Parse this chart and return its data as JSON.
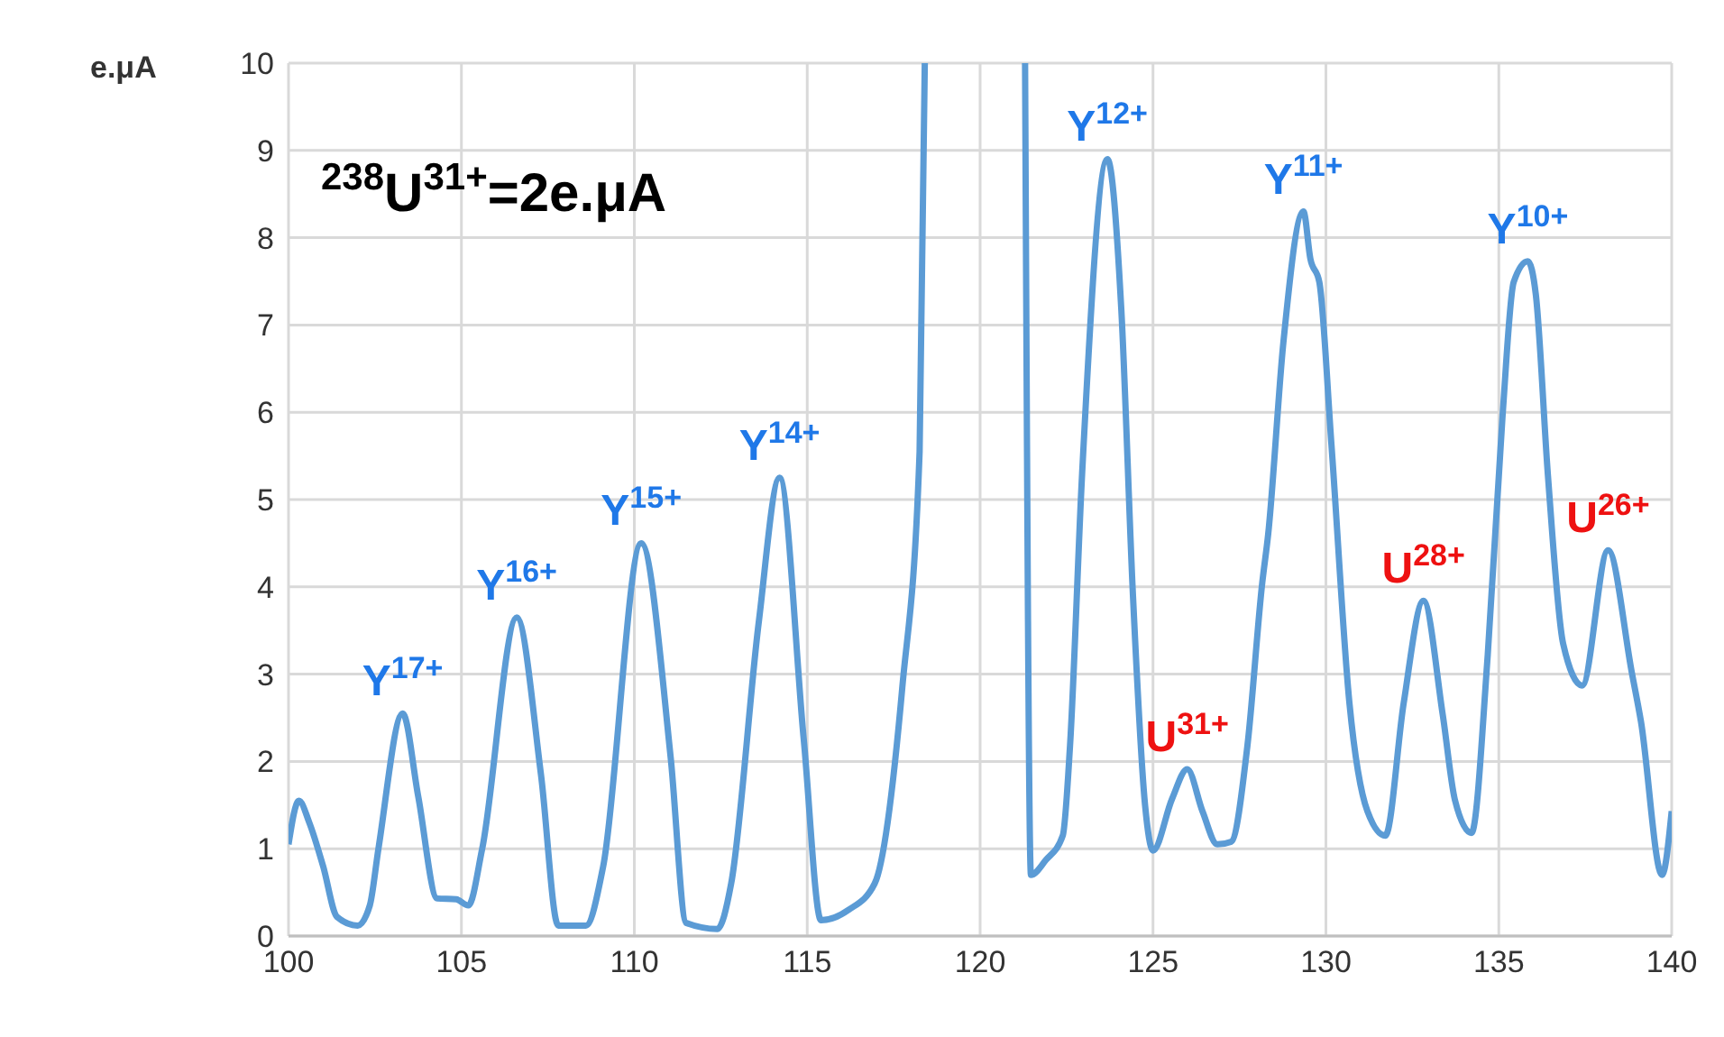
{
  "chart_data": {
    "type": "line",
    "ylabel": "e.μA",
    "x": [
      100,
      100.3,
      100.6,
      101.0,
      101.4,
      102.0,
      102.35,
      102.6,
      103.3,
      103.75,
      104.3,
      104.85,
      105.2,
      105.6,
      106.6,
      107.3,
      107.8,
      108.6,
      109.1,
      110.2,
      111.05,
      111.5,
      112.4,
      112.8,
      113.6,
      114.2,
      114.9,
      115.4,
      116.2,
      116.95,
      117.75,
      118.25,
      118.4,
      119.8,
      121.3,
      121.47,
      121.9,
      122.39,
      122.6,
      122.95,
      123.68,
      124.08,
      124.42,
      124.77,
      125.0,
      125.55,
      125.99,
      126.43,
      126.86,
      127.26,
      127.73,
      128.16,
      128.33,
      128.77,
      129.35,
      129.55,
      129.81,
      130.16,
      130.68,
      131.2,
      131.72,
      132.25,
      132.82,
      133.38,
      133.73,
      134.21,
      134.68,
      135.11,
      135.43,
      135.84,
      136.07,
      136.42,
      136.86,
      137.41,
      138.16,
      138.85,
      139.11,
      139.72,
      140
    ],
    "series": [
      {
        "color": "#5b9bd5",
        "values": [
          1.05,
          1.55,
          1.3,
          0.8,
          0.22,
          0.12,
          0.35,
          1.0,
          2.55,
          1.6,
          0.43,
          0.42,
          0.35,
          1.0,
          3.65,
          1.85,
          0.12,
          0.12,
          0.8,
          4.5,
          2.05,
          0.15,
          0.08,
          0.6,
          3.6,
          5.25,
          2.25,
          0.18,
          0.3,
          0.6,
          2.85,
          5.55,
          10,
          null,
          10,
          0.7,
          0.87,
          1.15,
          2.18,
          5.3,
          8.9,
          7.2,
          3.9,
          1.5,
          0.98,
          1.57,
          1.91,
          1.43,
          1.05,
          1.08,
          2.18,
          4.05,
          4.6,
          6.8,
          8.3,
          7.76,
          7.49,
          5.63,
          2.67,
          1.43,
          1.15,
          2.67,
          3.84,
          2.53,
          1.56,
          1.18,
          3.22,
          5.97,
          7.49,
          7.73,
          7.35,
          5.28,
          3.35,
          2.87,
          4.42,
          3.01,
          2.46,
          0.7,
          1.43
        ]
      }
    ],
    "xlim": [
      100,
      140
    ],
    "xticks": [
      100,
      105,
      110,
      115,
      120,
      125,
      130,
      135,
      140
    ],
    "ylim": [
      0,
      10
    ],
    "yticks": [
      0,
      1,
      2,
      3,
      4,
      5,
      6,
      7,
      8,
      9,
      10
    ],
    "grid": true,
    "marker": "none",
    "line_style": "solid",
    "annotations": [
      "$^{238}$U$^{31+}$=2e.μA",
      {
        "text": "Y$^{17+}$",
        "x": 103.3,
        "y": 2.55
      },
      {
        "text": "Y$^{16+}$",
        "x": 106.6,
        "y": 3.65
      },
      {
        "text": "Y$^{15+}$",
        "x": 110.2,
        "y": 4.5
      },
      {
        "text": "Y$^{14+}$",
        "x": 114.2,
        "y": 5.25
      },
      {
        "text": "Y$^{12+}$",
        "x": 123.68,
        "y": 8.9
      },
      {
        "text": "Y$^{11+}$",
        "x": 129.35,
        "y": 8.3
      },
      {
        "text": "Y$^{10+}$",
        "x": 135.84,
        "y": 7.73
      },
      {
        "text": "U$^{31+}$",
        "x": 125.99,
        "y": 1.91
      },
      {
        "text": "U$^{28+}$",
        "x": 132.82,
        "y": 3.84
      },
      {
        "text": "U$^{26+}$",
        "x": 138.16,
        "y": 4.42
      }
    ]
  }
}
